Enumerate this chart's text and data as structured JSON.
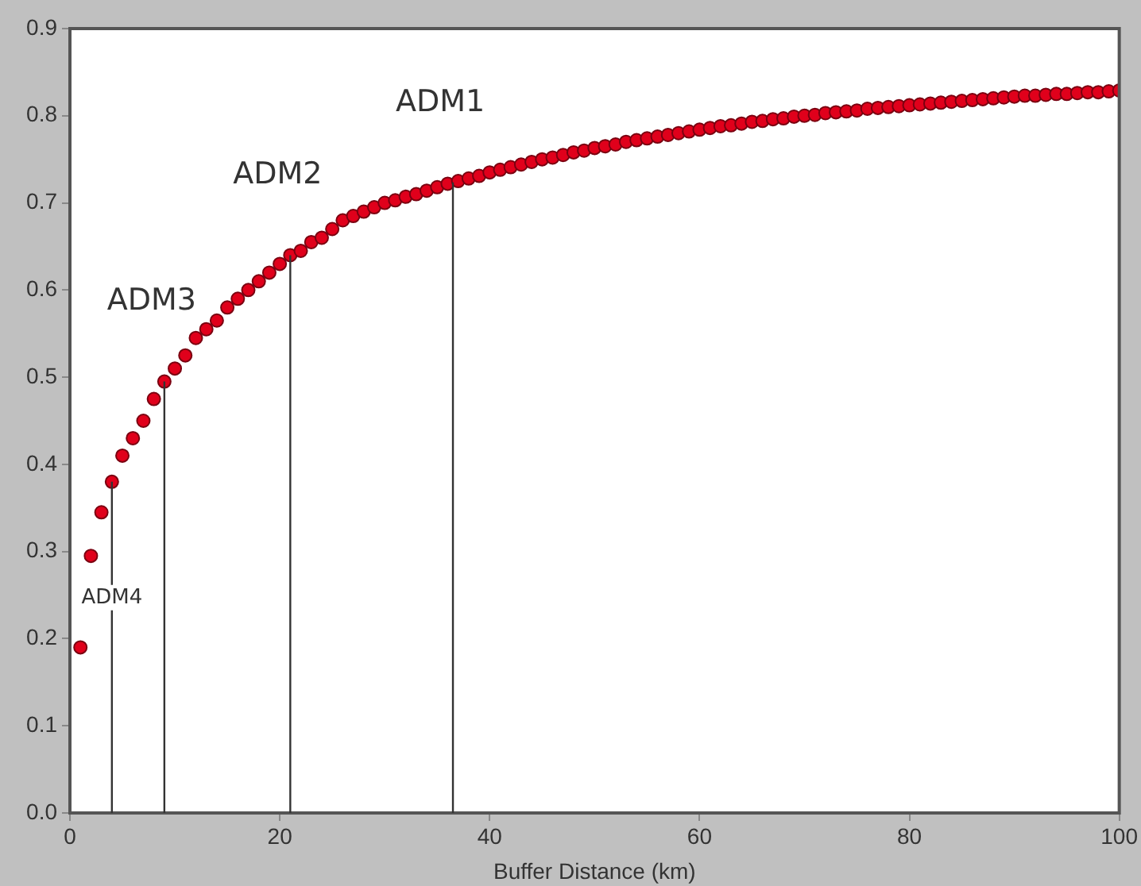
{
  "chart_data": {
    "type": "scatter",
    "xlabel": "Buffer Distance (km)",
    "xlim": [
      0,
      100
    ],
    "xticks": [
      0,
      20,
      40,
      60,
      80,
      100
    ],
    "ylim": [
      0,
      0.9
    ],
    "yticks": [
      {
        "value": 0,
        "label": "0.0"
      },
      0.1,
      0.2,
      0.3,
      0.4,
      0.5,
      0.6,
      0.7,
      0.8,
      0.9
    ],
    "grid": false,
    "legend": false,
    "marker": "circle",
    "x": [
      1,
      2,
      3,
      4,
      5,
      6,
      7,
      8,
      9,
      10,
      11,
      12,
      13,
      14,
      15,
      16,
      17,
      18,
      19,
      20,
      21,
      22,
      23,
      24,
      25,
      26,
      27,
      28,
      29,
      30,
      31,
      32,
      33,
      34,
      35,
      36,
      37,
      38,
      39,
      40,
      41,
      42,
      43,
      44,
      45,
      46,
      47,
      48,
      49,
      50,
      51,
      52,
      53,
      54,
      55,
      56,
      57,
      58,
      59,
      60,
      61,
      62,
      63,
      64,
      65,
      66,
      67,
      68,
      69,
      70,
      71,
      72,
      73,
      74,
      75,
      76,
      77,
      78,
      79,
      80,
      81,
      82,
      83,
      84,
      85,
      86,
      87,
      88,
      89,
      90,
      91,
      92,
      93,
      94,
      95,
      96,
      97,
      98,
      99,
      100
    ],
    "series": [
      {
        "color": "#e0001b",
        "values": [
          0.19,
          0.295,
          0.345,
          0.38,
          0.41,
          0.43,
          0.45,
          0.475,
          0.495,
          0.51,
          0.525,
          0.545,
          0.555,
          0.565,
          0.58,
          0.59,
          0.6,
          0.61,
          0.62,
          0.63,
          0.64,
          0.645,
          0.655,
          0.66,
          0.67,
          0.68,
          0.685,
          0.69,
          0.695,
          0.7,
          0.703,
          0.707,
          0.71,
          0.714,
          0.718,
          0.722,
          0.725,
          0.728,
          0.731,
          0.735,
          0.738,
          0.741,
          0.744,
          0.747,
          0.75,
          0.752,
          0.755,
          0.758,
          0.76,
          0.763,
          0.765,
          0.767,
          0.77,
          0.772,
          0.774,
          0.776,
          0.778,
          0.78,
          0.782,
          0.784,
          0.786,
          0.788,
          0.789,
          0.791,
          0.793,
          0.794,
          0.796,
          0.797,
          0.799,
          0.8,
          0.801,
          0.803,
          0.804,
          0.805,
          0.806,
          0.808,
          0.809,
          0.81,
          0.811,
          0.812,
          0.813,
          0.814,
          0.815,
          0.816,
          0.817,
          0.818,
          0.819,
          0.82,
          0.821,
          0.822,
          0.823,
          0.823,
          0.824,
          0.825,
          0.825,
          0.826,
          0.827,
          0.827,
          0.828,
          0.829
        ]
      }
    ],
    "ref_lines": [
      {
        "axis": "x",
        "value": 4,
        "label": "ADM4",
        "color": "#333333"
      },
      {
        "axis": "x",
        "value": 9,
        "label": "ADM3",
        "color": "#333333"
      },
      {
        "axis": "x",
        "value": 21,
        "label": "ADM2",
        "color": "#333333"
      },
      {
        "axis": "x",
        "value": 36.5,
        "label": "ADM1",
        "color": "#333333"
      }
    ]
  }
}
